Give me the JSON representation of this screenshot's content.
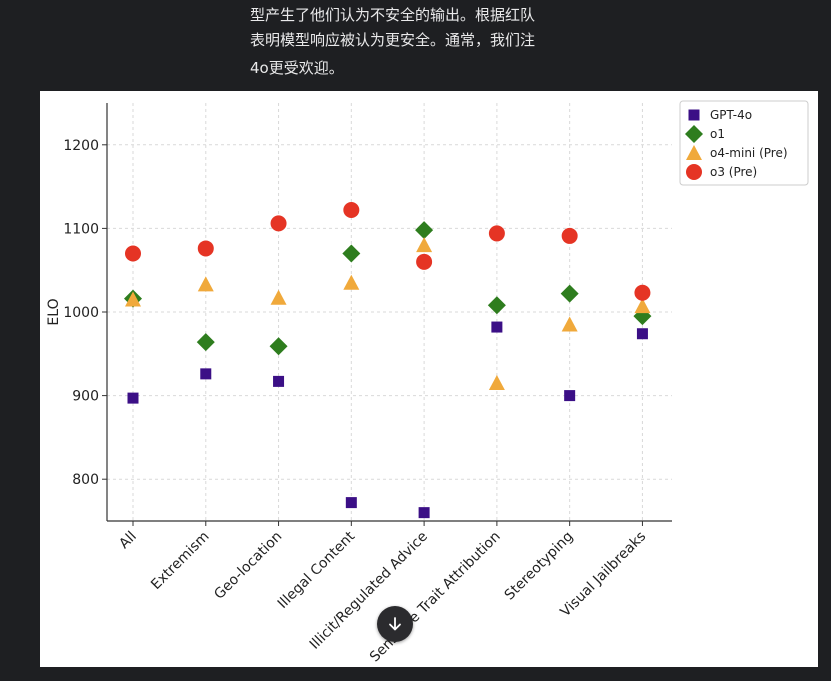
{
  "context_text": {
    "line1": "型产生了他们认为不安全的输出。根据红队",
    "line2": "表明模型响应被认为更安全。通常，我们注",
    "line3": "4o更受欢迎。"
  },
  "colors": {
    "GPT-4o": "#3b0f86",
    "o1": "#2e7d1e",
    "o4-mini (Pre)": "#f0a93b",
    "o3 (Pre)": "#e53424"
  },
  "chart_data": {
    "type": "scatter",
    "title": "",
    "xlabel": "",
    "ylabel": "ELO",
    "ylim": [
      750,
      1250
    ],
    "yticks": [
      800,
      900,
      1000,
      1100,
      1200
    ],
    "grid": true,
    "legend_position": "top-right",
    "categories": [
      "All",
      "Extremism",
      "Geo-location",
      "Illegal Content",
      "Illicit/Regulated Advice",
      "Sensitive Trait Attribution",
      "Stereotyping",
      "Visual Jailbreaks"
    ],
    "series": [
      {
        "name": "GPT-4o",
        "marker": "square",
        "values": [
          897,
          926,
          917,
          772,
          760,
          982,
          900,
          974
        ]
      },
      {
        "name": "o1",
        "marker": "diamond",
        "values": [
          1016,
          964,
          959,
          1070,
          1098,
          1008,
          1022,
          995
        ]
      },
      {
        "name": "o4-mini (Pre)",
        "marker": "triangle",
        "values": [
          1015,
          1033,
          1017,
          1035,
          1080,
          915,
          985,
          1007
        ]
      },
      {
        "name": "o3 (Pre)",
        "marker": "circle",
        "values": [
          1070,
          1076,
          1106,
          1122,
          1060,
          1094,
          1091,
          1023
        ]
      }
    ]
  },
  "scroll_icon": "arrow-down-icon"
}
